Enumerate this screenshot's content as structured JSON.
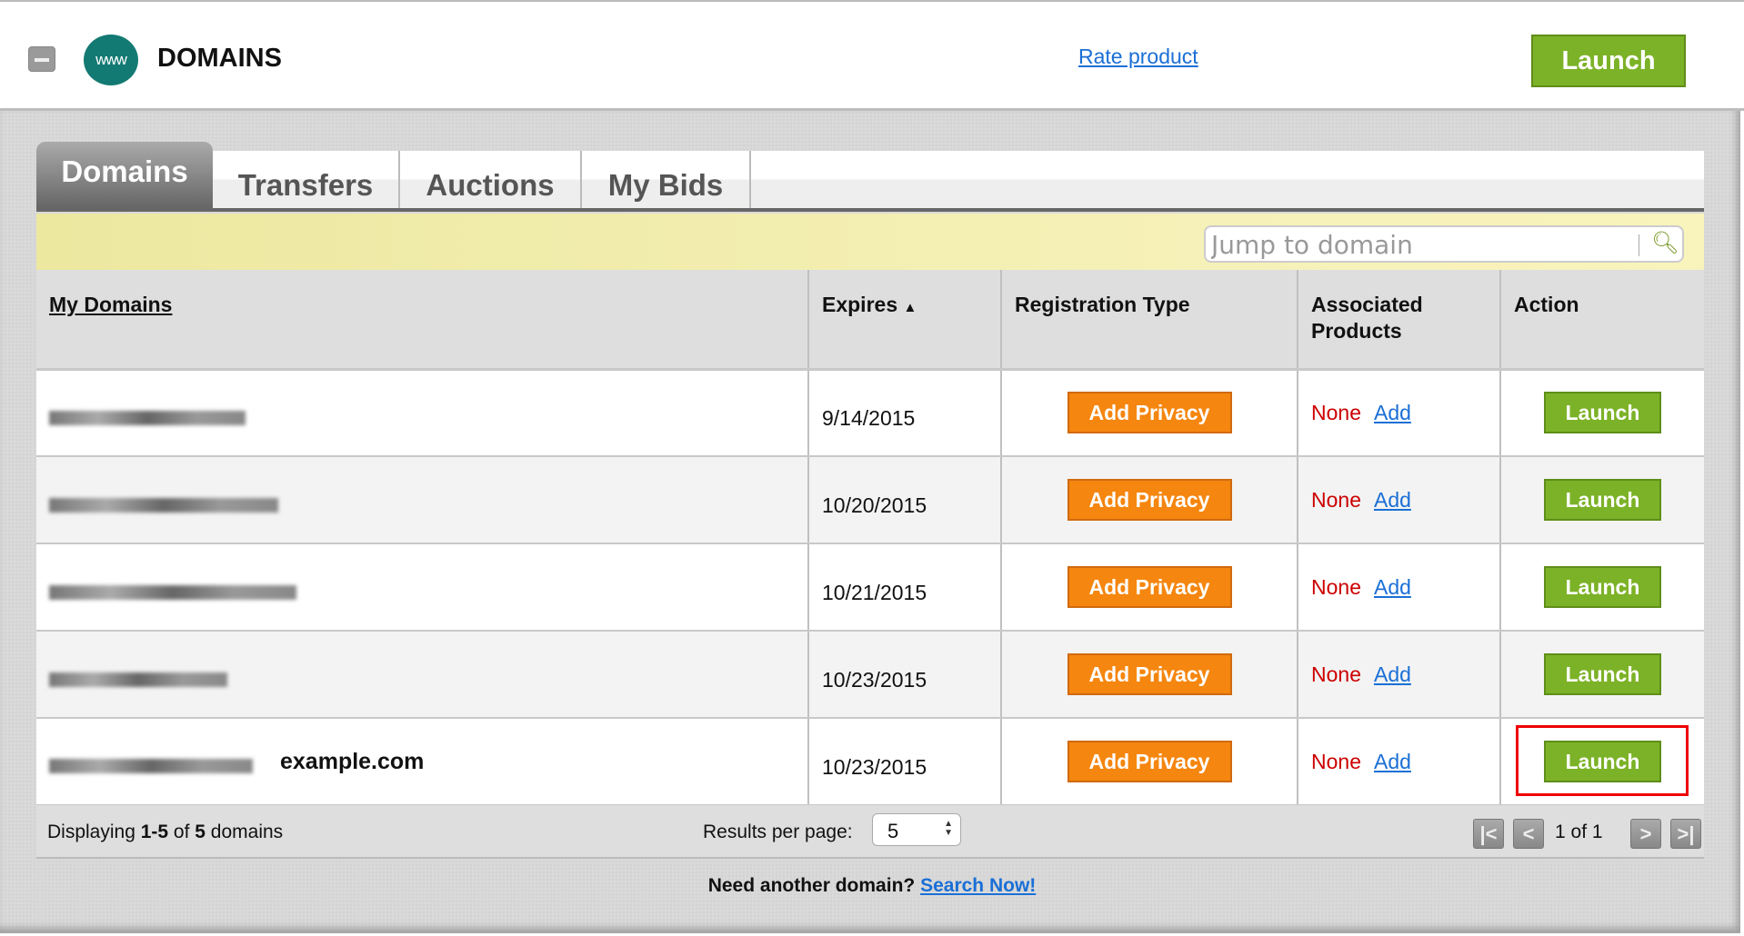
{
  "header": {
    "title": "DOMAINS",
    "logo_text": "www",
    "rate_link": "Rate product",
    "launch_label": "Launch"
  },
  "tabs": [
    {
      "label": "Domains",
      "active": true
    },
    {
      "label": "Transfers"
    },
    {
      "label": "Auctions"
    },
    {
      "label": "My Bids"
    }
  ],
  "search": {
    "placeholder": "Jump to domain",
    "icon": "search-icon"
  },
  "table": {
    "columns": [
      "My Domains",
      "Expires",
      "Registration Type",
      "Associated Products",
      "Action"
    ],
    "sort_indicator": "▲",
    "rows": [
      {
        "domain_annotation": "",
        "expires": "9/14/2015",
        "reg_button": "Add Privacy",
        "products": "None",
        "add_link": "Add",
        "action": "Launch"
      },
      {
        "domain_annotation": "",
        "expires": "10/20/2015",
        "reg_button": "Add Privacy",
        "products": "None",
        "add_link": "Add",
        "action": "Launch"
      },
      {
        "domain_annotation": "",
        "expires": "10/21/2015",
        "reg_button": "Add Privacy",
        "products": "None",
        "add_link": "Add",
        "action": "Launch"
      },
      {
        "domain_annotation": "",
        "expires": "10/23/2015",
        "reg_button": "Add Privacy",
        "products": "None",
        "add_link": "Add",
        "action": "Launch"
      },
      {
        "domain_annotation": "example.com",
        "expires": "10/23/2015",
        "reg_button": "Add Privacy",
        "products": "None",
        "add_link": "Add",
        "action": "Launch",
        "highlighted": true
      }
    ]
  },
  "footer": {
    "displaying_prefix": "Displaying ",
    "range": "1-5",
    "of": " of ",
    "total": "5",
    "suffix": " domains",
    "results_per_page_label": "Results per page:",
    "results_per_page": "5",
    "page_text": "1 of 1"
  },
  "bottom": {
    "prompt": "Need another domain?",
    "link": "Search Now!"
  },
  "colors": {
    "launch_green": "#7cb227",
    "privacy_orange": "#f5860f",
    "none_red": "#cc0000",
    "link_blue": "#1a6fd6",
    "highlight_red": "#ee0000"
  }
}
